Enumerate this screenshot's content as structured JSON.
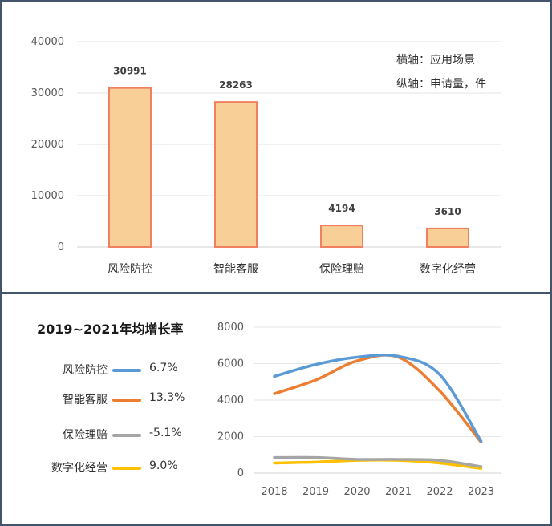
{
  "chart_data": [
    {
      "type": "bar",
      "categories": [
        "风险防控",
        "智能客服",
        "保险理赔",
        "数字化经营"
      ],
      "values": [
        30991,
        28263,
        4194,
        3610
      ],
      "ylim": [
        0,
        40000
      ],
      "yticks": [
        0,
        10000,
        20000,
        30000,
        40000
      ],
      "annotations": [
        "横轴：应用场景",
        "纵轴：申请量，件"
      ],
      "grid": true,
      "bar_fill": "#f8cf96",
      "bar_edge": "#f08060"
    },
    {
      "type": "line",
      "x": [
        "2018",
        "2019",
        "2020",
        "2021",
        "2022",
        "2023"
      ],
      "ylim": [
        0,
        8000
      ],
      "yticks": [
        0,
        2000,
        4000,
        6000,
        8000
      ],
      "series": [
        {
          "name": "风险防控",
          "values": [
            5300,
            5950,
            6350,
            6400,
            5400,
            1750
          ],
          "color": "#5b9bd5"
        },
        {
          "name": "智能客服",
          "values": [
            4350,
            5100,
            6150,
            6350,
            4500,
            1700
          ],
          "color": "#ed7d31"
        },
        {
          "name": "保险理赔",
          "values": [
            850,
            850,
            750,
            750,
            700,
            350
          ],
          "color": "#a5a5a5"
        },
        {
          "name": "数字化经营",
          "values": [
            550,
            600,
            700,
            700,
            550,
            250
          ],
          "color": "#ffc000"
        }
      ],
      "grid": true
    }
  ],
  "legend": {
    "title": "2019~2021年均增长率",
    "items": [
      {
        "name": "风险防控",
        "rate": "6.7%",
        "color": "#5b9bd5"
      },
      {
        "name": "智能客服",
        "rate": "13.3%",
        "color": "#ed7d31"
      },
      {
        "name": "保险理赔",
        "rate": "-5.1%",
        "color": "#a5a5a5"
      },
      {
        "name": "数字化经营",
        "rate": "9.0%",
        "color": "#ffc000"
      }
    ]
  }
}
